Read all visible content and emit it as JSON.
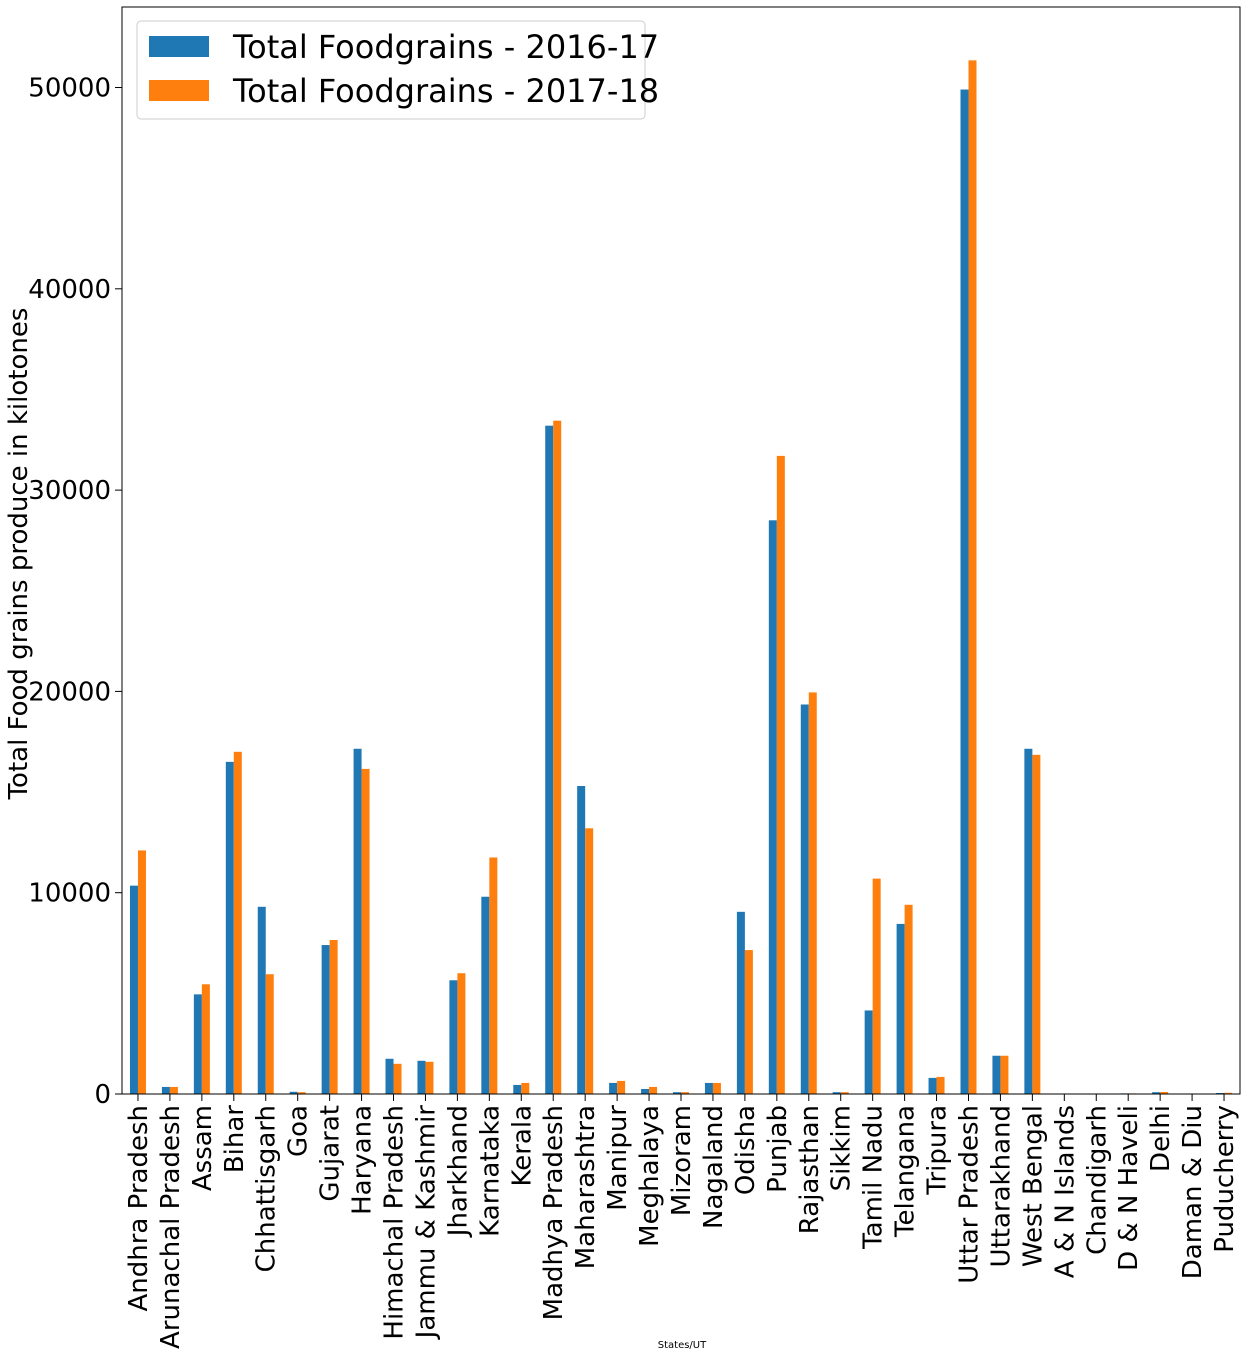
{
  "chart_data": {
    "type": "bar",
    "xlabel": "States/UT",
    "ylabel": "Total Food grains produce in kilotones",
    "ylim": [
      0,
      54000
    ],
    "yticks": [
      0,
      10000,
      20000,
      30000,
      40000,
      50000
    ],
    "legend_position": "top-left",
    "grid": false,
    "categories": [
      "Andhra Pradesh",
      "Arunachal Pradesh",
      "Assam",
      "Bihar",
      "Chhattisgarh",
      "Goa",
      "Gujarat",
      "Haryana",
      "Himachal Pradesh",
      "Jammu & Kashmir",
      "Jharkhand",
      "Karnataka",
      "Kerala",
      "Madhya Pradesh",
      "Maharashtra",
      "Manipur",
      "Meghalaya",
      "Mizoram",
      "Nagaland",
      "Odisha",
      "Punjab",
      "Rajasthan",
      "Sikkim",
      "Tamil Nadu",
      "Telangana",
      "Tripura",
      "Uttar Pradesh",
      "Uttarakhand",
      "West Bengal",
      "A & N Islands",
      "Chandigarh",
      "D & N Haveli",
      "Delhi",
      "Daman & Diu",
      "Puducherry"
    ],
    "series": [
      {
        "name": "Total Foodgrains - 2016-17",
        "color": "#1f77b4",
        "values": [
          10350,
          350,
          4950,
          16500,
          9300,
          110,
          7400,
          17150,
          1750,
          1650,
          5650,
          9800,
          450,
          33200,
          15300,
          550,
          250,
          90,
          550,
          9050,
          28500,
          19350,
          90,
          4150,
          8450,
          800,
          49900,
          1900,
          17150,
          20,
          5,
          30,
          90,
          5,
          50
        ]
      },
      {
        "name": "Total Foodgrains - 2017-18",
        "color": "#ff7f0e",
        "values": [
          12100,
          350,
          5450,
          17000,
          5950,
          90,
          7650,
          16150,
          1500,
          1600,
          6000,
          11750,
          550,
          33450,
          13200,
          650,
          350,
          90,
          550,
          7150,
          31700,
          19950,
          90,
          10700,
          9400,
          850,
          51350,
          1900,
          16850,
          20,
          5,
          30,
          100,
          5,
          60
        ]
      }
    ]
  }
}
